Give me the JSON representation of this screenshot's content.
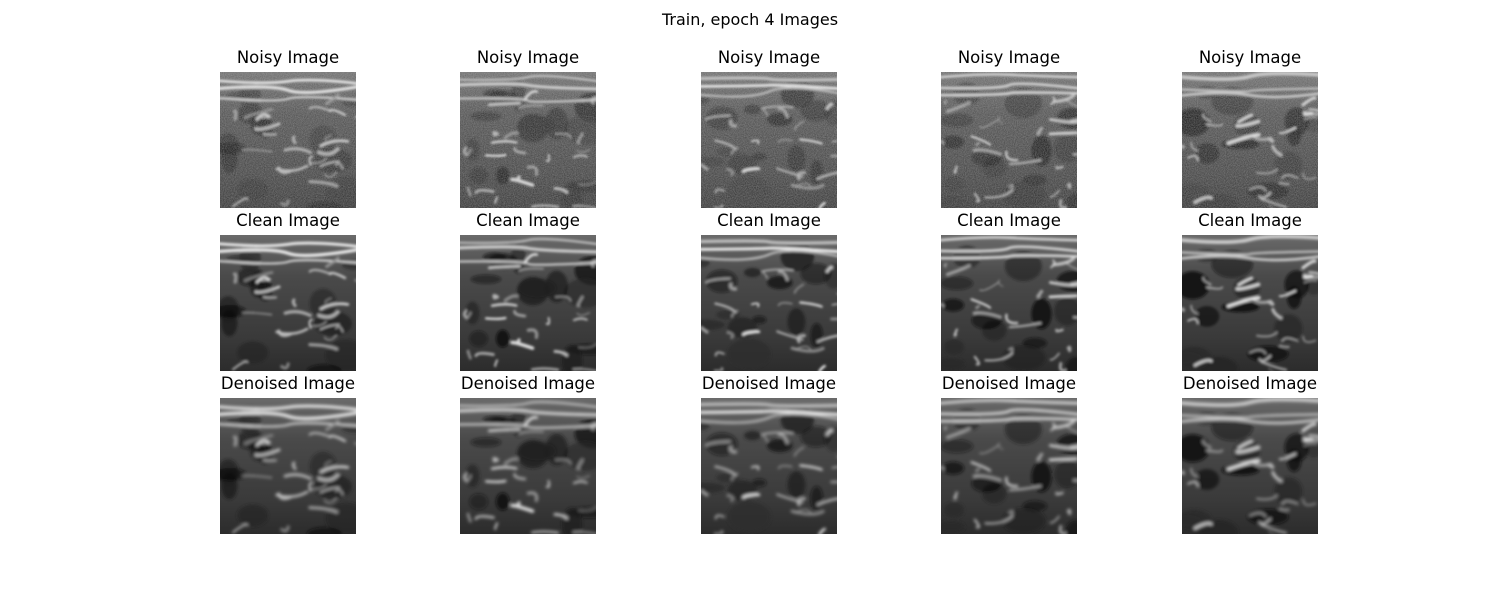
{
  "figure": {
    "title": "Train, epoch 4 Images"
  },
  "rows": [
    {
      "label": "Noisy Image"
    },
    {
      "label": "Clean Image"
    },
    {
      "label": "Denoised Image"
    }
  ],
  "columns": 5,
  "colormap": "grayscale"
}
